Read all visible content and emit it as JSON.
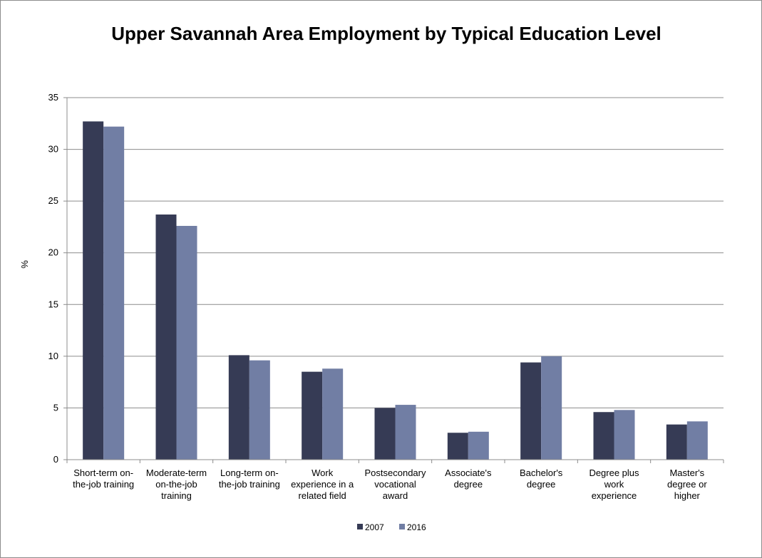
{
  "chart_data": {
    "type": "bar",
    "title": "Upper Savannah Area Employment by Typical Education Level",
    "xlabel": "",
    "ylabel": "%",
    "ylim": [
      0,
      35
    ],
    "yticks": [
      0,
      5,
      10,
      15,
      20,
      25,
      30,
      35
    ],
    "grid": true,
    "legend_position": "bottom",
    "categories": [
      [
        "Short-term on-",
        "the-job training"
      ],
      [
        "Moderate-term",
        "on-the-job",
        "training"
      ],
      [
        "Long-term on-",
        "the-job training"
      ],
      [
        "Work",
        "experience in a",
        "related field"
      ],
      [
        "Postsecondary",
        "vocational",
        "award"
      ],
      [
        "Associate's",
        "degree"
      ],
      [
        "Bachelor's",
        "degree"
      ],
      [
        "Degree plus",
        "work",
        "experience"
      ],
      [
        "Master's",
        "degree or",
        "higher"
      ]
    ],
    "series": [
      {
        "name": "2007",
        "color": "#363b55",
        "values": [
          32.7,
          23.7,
          10.1,
          8.5,
          5.0,
          2.6,
          9.4,
          4.6,
          3.4
        ]
      },
      {
        "name": "2016",
        "color": "#717ea4",
        "values": [
          32.2,
          22.6,
          9.6,
          8.8,
          5.3,
          2.7,
          10.0,
          4.8,
          3.7
        ]
      }
    ]
  }
}
